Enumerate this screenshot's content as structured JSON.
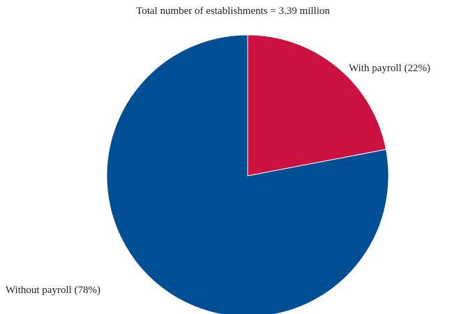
{
  "chart_data": {
    "type": "pie",
    "title": "Total number of establishments = 3.39 million",
    "slices": [
      {
        "label": "With payroll (22%)",
        "value": 22,
        "color": "#cc1040"
      },
      {
        "label": "Without payroll (78%)",
        "value": 78,
        "color": "#004f95"
      }
    ],
    "start_angle": "12 o'clock",
    "direction": "clockwise",
    "legend": "none"
  }
}
